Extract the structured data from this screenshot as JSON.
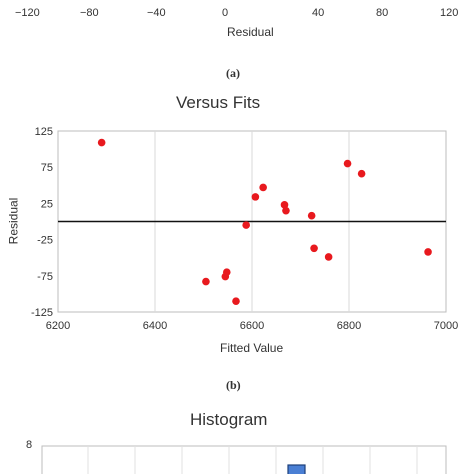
{
  "panel_a": {
    "x_ticks": [
      "−120",
      "−80",
      "−40",
      "0",
      "40",
      "80",
      "120"
    ],
    "xlabel": "Residual",
    "caption": "(a)"
  },
  "panel_b": {
    "caption": "(b)"
  },
  "panel_c": {
    "title": "Histogram",
    "y_tick_top": "8"
  },
  "chart_data": [
    {
      "type": "scatter",
      "title": "Versus Fits",
      "xlabel": "Fitted Value",
      "ylabel": "Residual",
      "xlim": [
        6200,
        7000
      ],
      "ylim": [
        -125,
        125
      ],
      "x_ticks": [
        6200,
        6400,
        6600,
        6800,
        7000
      ],
      "y_ticks": [
        125,
        75,
        25,
        -25,
        -75,
        -125
      ],
      "grid": "vertical",
      "reference_line": 0,
      "marker_color": "#e8191e",
      "points": [
        {
          "x": 6290,
          "y": 109
        },
        {
          "x": 6505,
          "y": -83
        },
        {
          "x": 6545,
          "y": -76
        },
        {
          "x": 6548,
          "y": -70
        },
        {
          "x": 6567,
          "y": -110
        },
        {
          "x": 6588,
          "y": -5
        },
        {
          "x": 6607,
          "y": 34
        },
        {
          "x": 6623,
          "y": 47
        },
        {
          "x": 6667,
          "y": 23
        },
        {
          "x": 6670,
          "y": 15
        },
        {
          "x": 6723,
          "y": 8
        },
        {
          "x": 6728,
          "y": -37
        },
        {
          "x": 6758,
          "y": -49
        },
        {
          "x": 6797,
          "y": 80
        },
        {
          "x": 6826,
          "y": 66
        },
        {
          "x": 6963,
          "y": -42
        }
      ]
    }
  ]
}
